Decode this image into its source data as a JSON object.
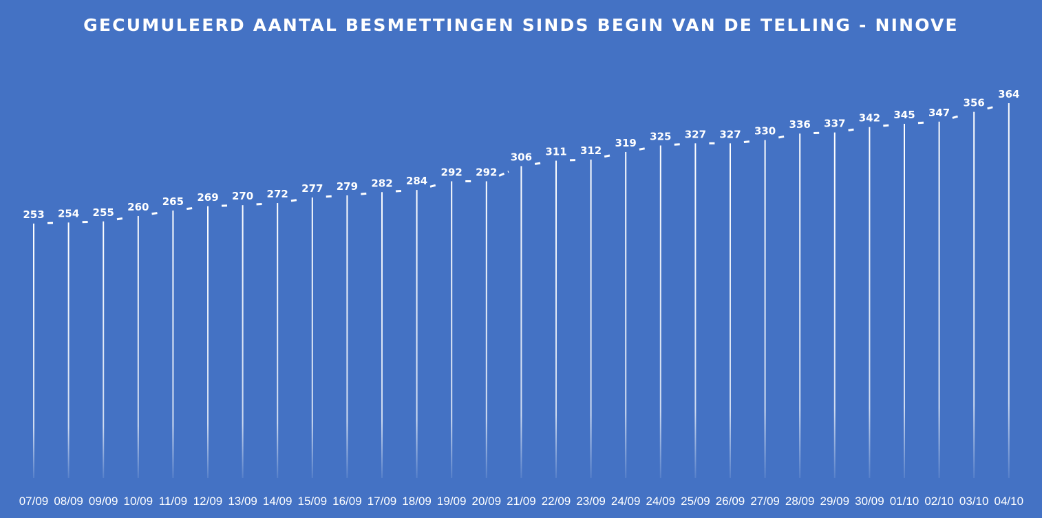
{
  "colors": {
    "background": "#4472c4",
    "foreground": "#ffffff"
  },
  "chart_data": {
    "type": "line",
    "title": "GECUMULEERD AANTAL BESMETTINGEN SINDS BEGIN VAN DE TELLING - NINOVE",
    "xlabel": "",
    "ylabel": "",
    "categories": [
      "07/09",
      "08/09",
      "09/09",
      "10/09",
      "11/09",
      "12/09",
      "13/09",
      "14/09",
      "15/09",
      "16/09",
      "17/09",
      "18/09",
      "19/09",
      "20/09",
      "21/09",
      "22/09",
      "23/09",
      "24/09",
      "24/09",
      "25/09",
      "26/09",
      "27/09",
      "28/09",
      "29/09",
      "30/09",
      "01/10",
      "02/10",
      "03/10",
      "04/10"
    ],
    "series": [
      {
        "values": [
          253,
          254,
          255,
          260,
          265,
          269,
          270,
          272,
          277,
          279,
          282,
          284,
          292,
          292,
          306,
          311,
          312,
          319,
          325,
          327,
          327,
          330,
          336,
          337,
          342,
          345,
          347,
          356,
          364
        ]
      }
    ],
    "ylim": [
      0,
      420
    ],
    "grid": false,
    "legend": "none",
    "style": "dashed line with white drop lines to the axis and value labels on each point"
  }
}
